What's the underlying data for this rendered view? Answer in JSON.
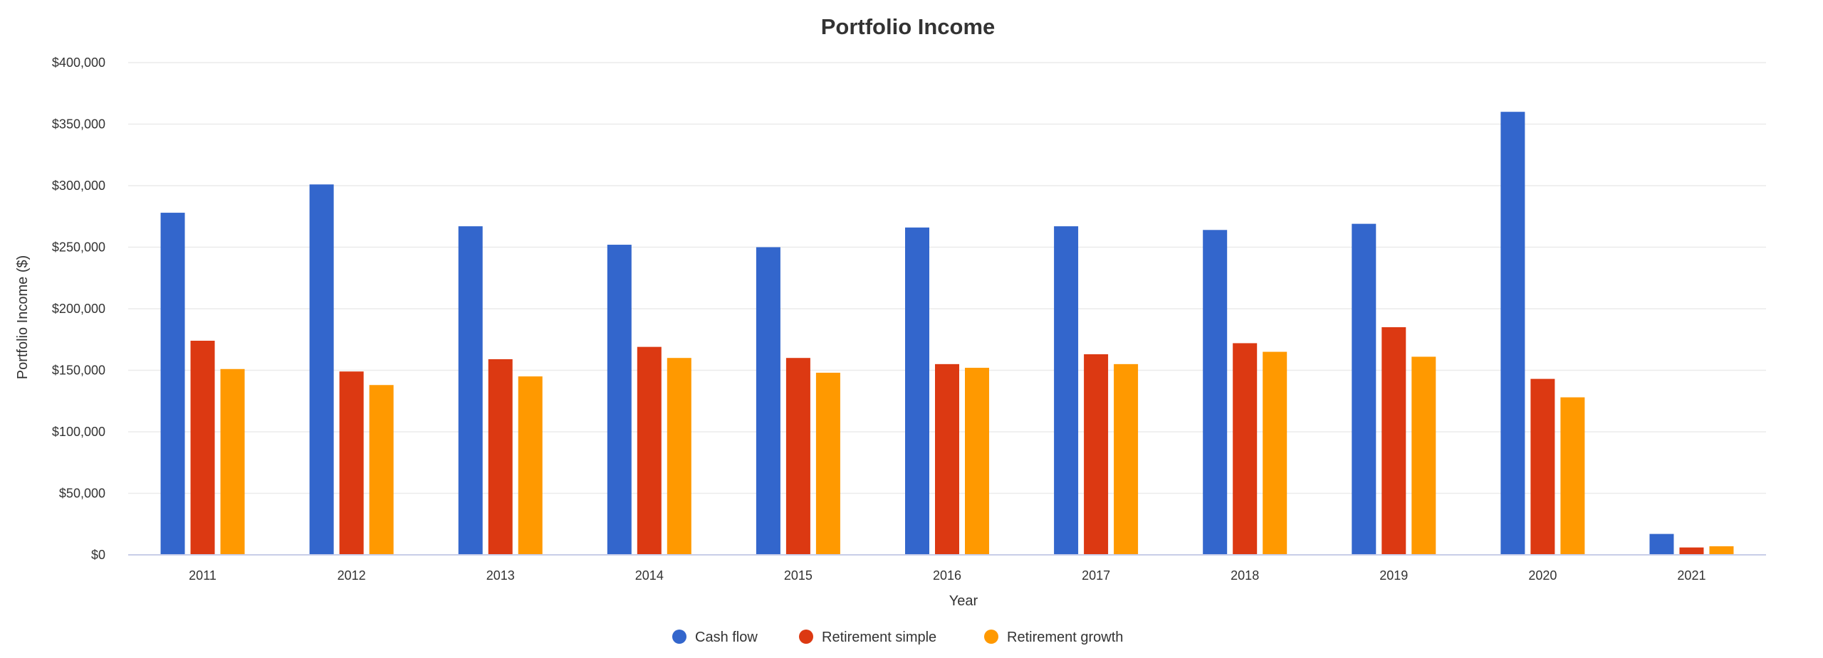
{
  "chart_data": {
    "type": "bar",
    "title": "Portfolio Income",
    "xlabel": "Year",
    "ylabel": "Portfolio Income ($)",
    "ylim": [
      0,
      400000
    ],
    "yticks": [
      0,
      50000,
      100000,
      150000,
      200000,
      250000,
      300000,
      350000,
      400000
    ],
    "ytick_labels": [
      "$0",
      "$50,000",
      "$100,000",
      "$150,000",
      "$200,000",
      "$250,000",
      "$300,000",
      "$350,000",
      "$400,000"
    ],
    "grid": true,
    "legend_position": "bottom",
    "categories": [
      "2011",
      "2012",
      "2013",
      "2014",
      "2015",
      "2016",
      "2017",
      "2018",
      "2019",
      "2020",
      "2021"
    ],
    "series": [
      {
        "name": "Cash flow",
        "color": "#3366cc",
        "values": [
          278000,
          301000,
          267000,
          252000,
          250000,
          266000,
          267000,
          264000,
          269000,
          360000,
          17000
        ]
      },
      {
        "name": "Retirement simple",
        "color": "#dc3912",
        "values": [
          174000,
          149000,
          159000,
          169000,
          160000,
          155000,
          163000,
          172000,
          185000,
          143000,
          6000
        ]
      },
      {
        "name": "Retirement growth",
        "color": "#ff9900",
        "values": [
          151000,
          138000,
          145000,
          160000,
          148000,
          152000,
          155000,
          165000,
          161000,
          128000,
          7000
        ]
      }
    ]
  }
}
